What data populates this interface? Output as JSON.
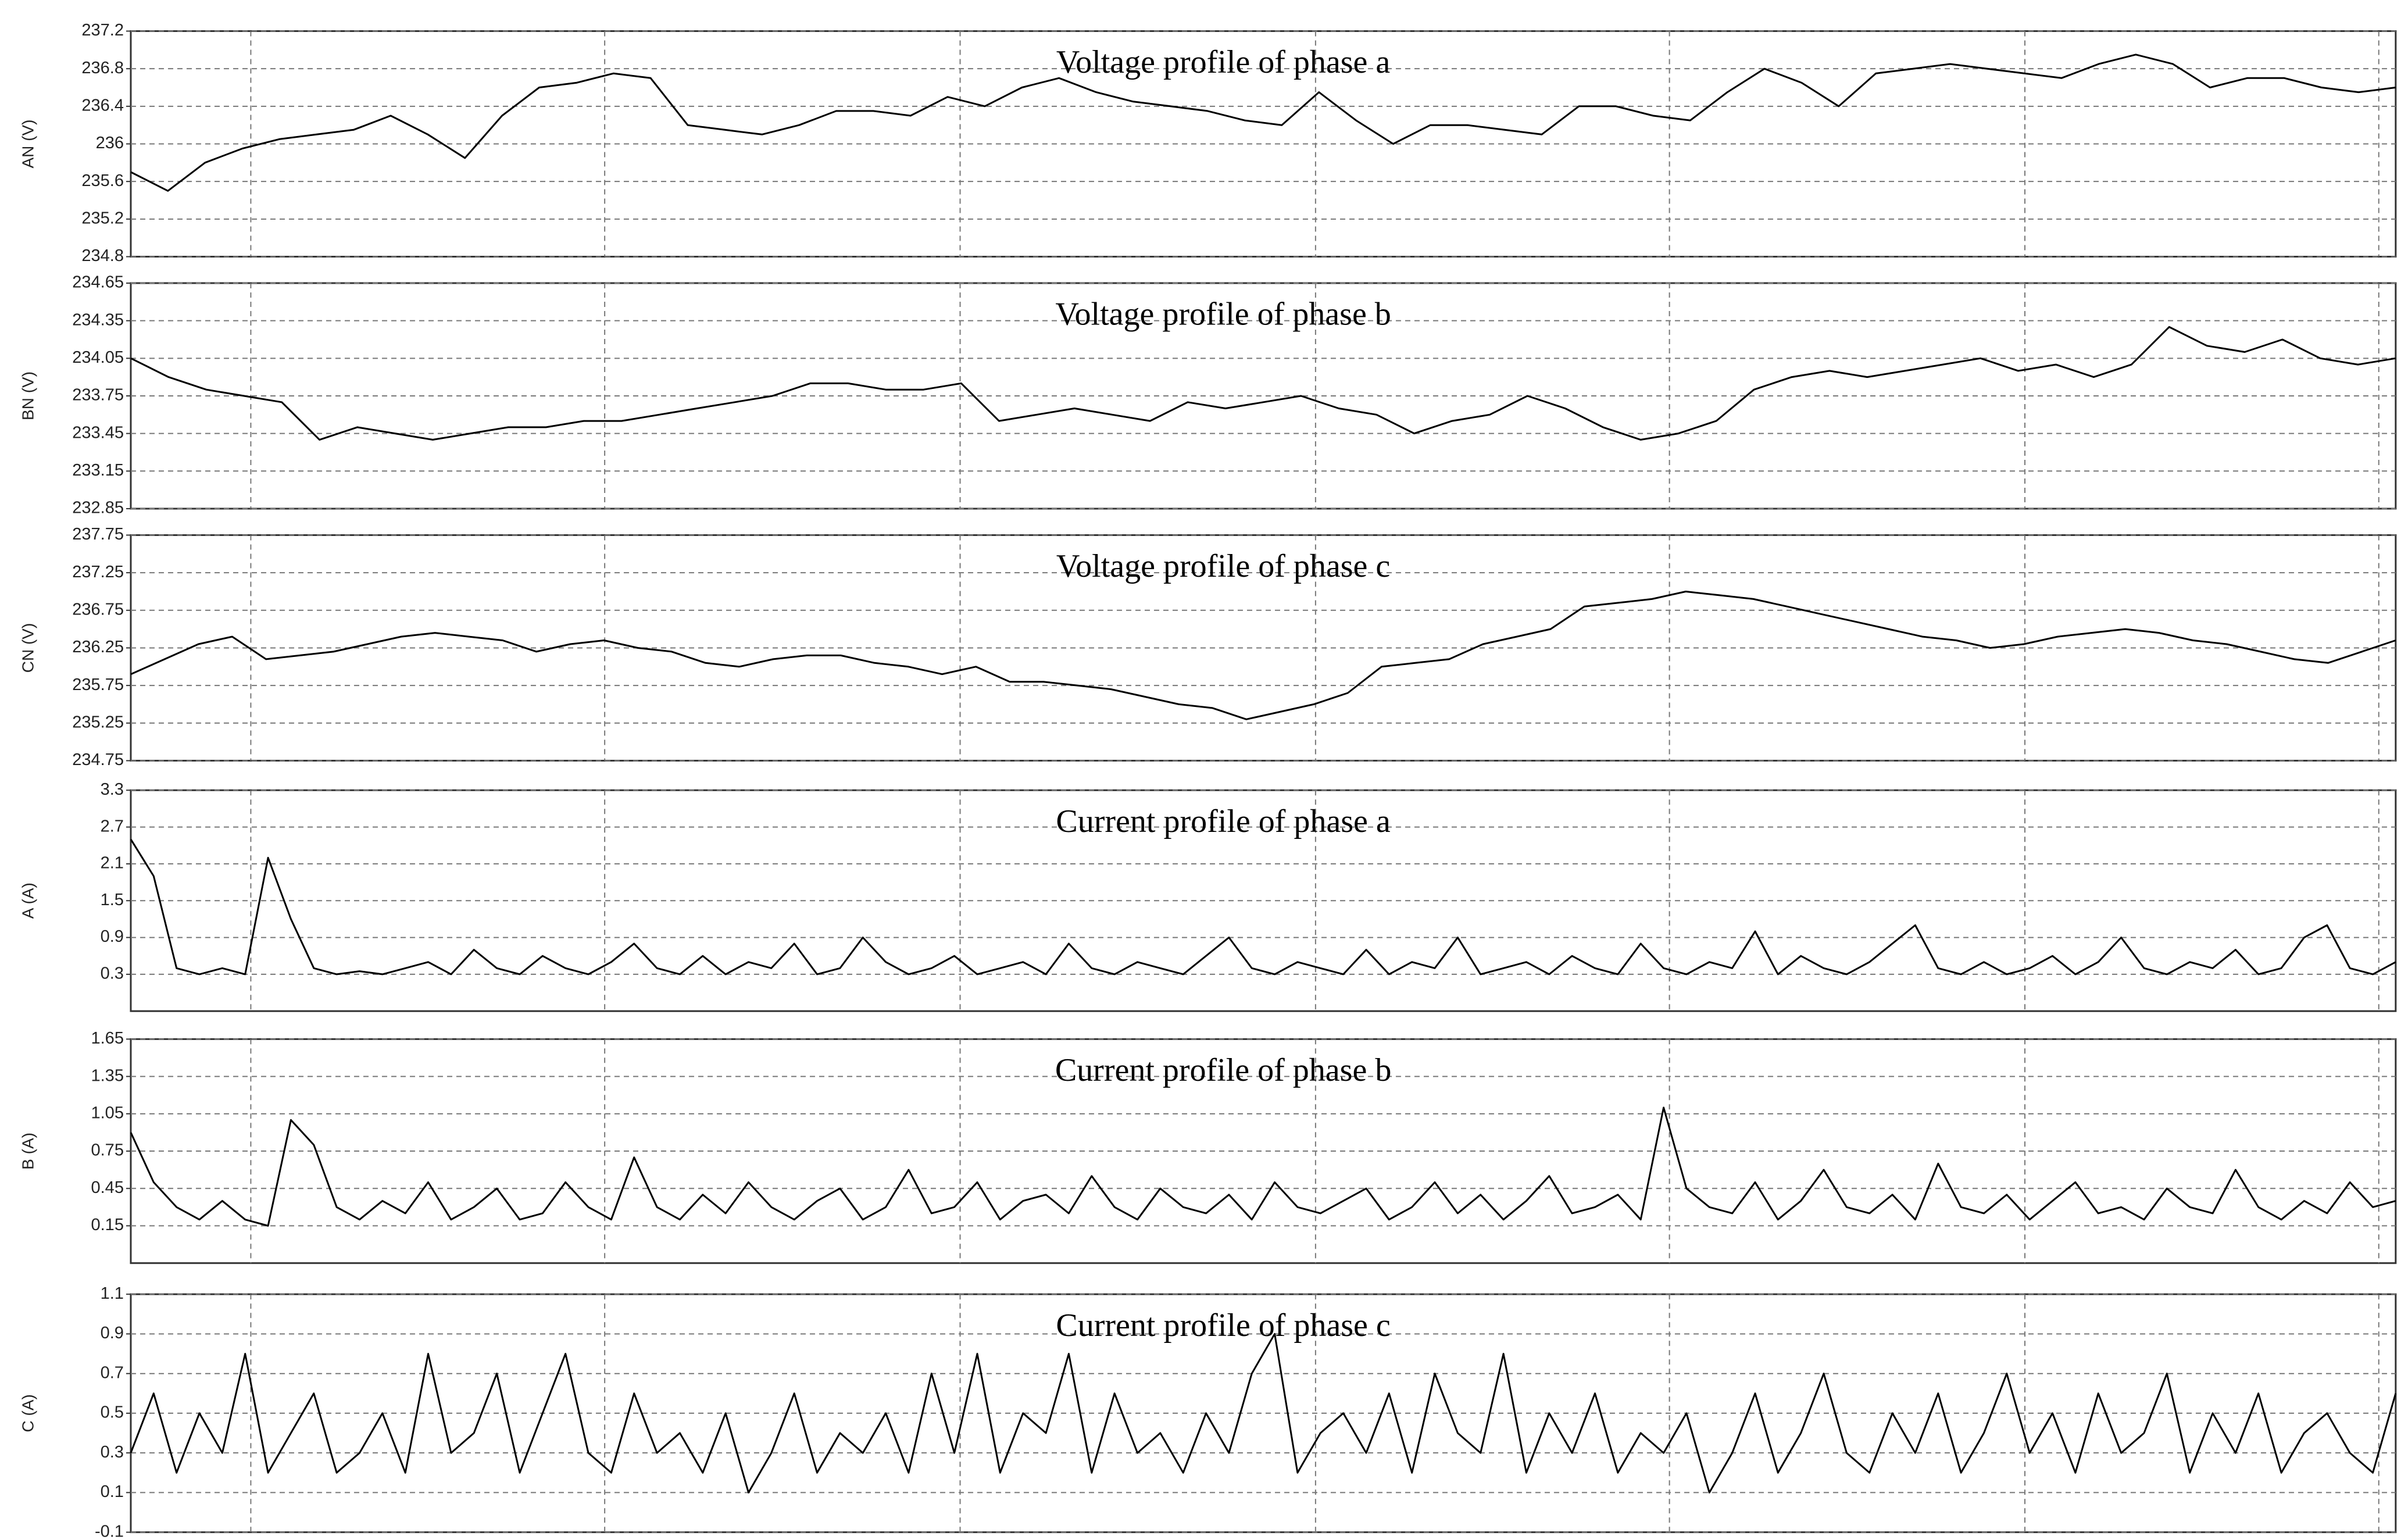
{
  "chart_data": [
    {
      "type": "line",
      "title": "Voltage profile of phase a",
      "y_label": "AN (V)",
      "color": "#000000",
      "grid": true,
      "ylim": [
        234.8,
        237.2
      ],
      "yticks": [
        234.8,
        235.2,
        235.6,
        236,
        236.4,
        236.8,
        237.2
      ],
      "values": [
        235.7,
        235.5,
        235.8,
        235.95,
        236.05,
        236.1,
        236.15,
        236.3,
        236.1,
        235.85,
        236.3,
        236.6,
        236.65,
        236.75,
        236.7,
        236.2,
        236.15,
        236.1,
        236.2,
        236.35,
        236.35,
        236.3,
        236.5,
        236.4,
        236.6,
        236.7,
        236.55,
        236.45,
        236.4,
        236.35,
        236.25,
        236.2,
        236.55,
        236.25,
        236,
        236.2,
        236.2,
        236.15,
        236.1,
        236.4,
        236.4,
        236.3,
        236.25,
        236.55,
        236.8,
        236.65,
        236.4,
        236.75,
        236.8,
        236.85,
        236.8,
        236.75,
        236.7,
        236.85,
        236.95,
        236.85,
        236.6,
        236.7,
        236.7,
        236.6,
        236.55,
        236.6
      ]
    },
    {
      "type": "line",
      "title": "Voltage profile of phase b",
      "y_label": "BN (V)",
      "color": "#000000",
      "grid": true,
      "ylim": [
        232.85,
        234.65
      ],
      "yticks": [
        232.85,
        233.15,
        233.45,
        233.75,
        234.05,
        234.35,
        234.65
      ],
      "values": [
        234.05,
        233.9,
        233.8,
        233.75,
        233.7,
        233.4,
        233.5,
        233.45,
        233.4,
        233.45,
        233.5,
        233.5,
        233.55,
        233.55,
        233.6,
        233.65,
        233.7,
        233.75,
        233.85,
        233.85,
        233.8,
        233.8,
        233.85,
        233.55,
        233.6,
        233.65,
        233.6,
        233.55,
        233.7,
        233.65,
        233.7,
        233.75,
        233.65,
        233.6,
        233.45,
        233.55,
        233.6,
        233.75,
        233.65,
        233.5,
        233.4,
        233.45,
        233.55,
        233.8,
        233.9,
        233.95,
        233.9,
        233.95,
        234,
        234.05,
        233.95,
        234,
        233.9,
        234,
        234.3,
        234.15,
        234.1,
        234.2,
        234.05,
        234,
        234.05
      ]
    },
    {
      "type": "line",
      "title": "Voltage profile of phase c",
      "y_label": "CN (V)",
      "color": "#000000",
      "grid": true,
      "ylim": [
        234.75,
        237.75
      ],
      "yticks": [
        234.75,
        235.25,
        235.75,
        236.25,
        236.75,
        237.25,
        237.75
      ],
      "values": [
        235.9,
        236.1,
        236.3,
        236.4,
        236.1,
        236.15,
        236.2,
        236.3,
        236.4,
        236.45,
        236.4,
        236.35,
        236.2,
        236.3,
        236.35,
        236.25,
        236.2,
        236.05,
        236,
        236.1,
        236.15,
        236.15,
        236.05,
        236,
        235.9,
        236,
        235.8,
        235.8,
        235.75,
        235.7,
        235.6,
        235.5,
        235.45,
        235.3,
        235.4,
        235.5,
        235.65,
        236,
        236.05,
        236.1,
        236.3,
        236.4,
        236.5,
        236.8,
        236.85,
        236.9,
        237,
        236.95,
        236.9,
        236.8,
        236.7,
        236.6,
        236.5,
        236.4,
        236.35,
        236.25,
        236.3,
        236.4,
        236.45,
        236.5,
        236.45,
        236.35,
        236.3,
        236.2,
        236.1,
        236.05,
        236.2,
        236.35
      ]
    },
    {
      "type": "line",
      "title": "Current profile of phase a",
      "y_label": "A (A)",
      "color": "#000000",
      "grid": true,
      "ylim": [
        -0.3,
        3.3
      ],
      "yticks": [
        0.3,
        0.9,
        1.5,
        2.1,
        2.7,
        3.3
      ],
      "values": [
        2.5,
        1.9,
        0.4,
        0.3,
        0.4,
        0.3,
        2.2,
        1.2,
        0.4,
        0.3,
        0.35,
        0.3,
        0.4,
        0.5,
        0.3,
        0.7,
        0.4,
        0.3,
        0.6,
        0.4,
        0.3,
        0.5,
        0.8,
        0.4,
        0.3,
        0.6,
        0.3,
        0.5,
        0.4,
        0.8,
        0.3,
        0.4,
        0.9,
        0.5,
        0.3,
        0.4,
        0.6,
        0.3,
        0.4,
        0.5,
        0.3,
        0.8,
        0.4,
        0.3,
        0.5,
        0.4,
        0.3,
        0.6,
        0.9,
        0.4,
        0.3,
        0.5,
        0.4,
        0.3,
        0.7,
        0.3,
        0.5,
        0.4,
        0.9,
        0.3,
        0.4,
        0.5,
        0.3,
        0.6,
        0.4,
        0.3,
        0.8,
        0.4,
        0.3,
        0.5,
        0.4,
        1.0,
        0.3,
        0.6,
        0.4,
        0.3,
        0.5,
        0.8,
        1.1,
        0.4,
        0.3,
        0.5,
        0.3,
        0.4,
        0.6,
        0.3,
        0.5,
        0.9,
        0.4,
        0.3,
        0.5,
        0.4,
        0.7,
        0.3,
        0.4,
        0.9,
        1.1,
        0.4,
        0.3,
        0.5
      ]
    },
    {
      "type": "line",
      "title": "Current profile of phase b",
      "y_label": "B (A)",
      "color": "#000000",
      "grid": true,
      "ylim": [
        -0.15,
        1.65
      ],
      "yticks": [
        0.15,
        0.45,
        0.75,
        1.05,
        1.35,
        1.65
      ],
      "values": [
        0.9,
        0.5,
        0.3,
        0.2,
        0.35,
        0.2,
        0.15,
        1.0,
        0.8,
        0.3,
        0.2,
        0.35,
        0.25,
        0.5,
        0.2,
        0.3,
        0.45,
        0.2,
        0.25,
        0.5,
        0.3,
        0.2,
        0.7,
        0.3,
        0.2,
        0.4,
        0.25,
        0.5,
        0.3,
        0.2,
        0.35,
        0.45,
        0.2,
        0.3,
        0.6,
        0.25,
        0.3,
        0.5,
        0.2,
        0.35,
        0.4,
        0.25,
        0.55,
        0.3,
        0.2,
        0.45,
        0.3,
        0.25,
        0.4,
        0.2,
        0.5,
        0.3,
        0.25,
        0.35,
        0.45,
        0.2,
        0.3,
        0.5,
        0.25,
        0.4,
        0.2,
        0.35,
        0.55,
        0.25,
        0.3,
        0.4,
        0.2,
        1.1,
        0.45,
        0.3,
        0.25,
        0.5,
        0.2,
        0.35,
        0.6,
        0.3,
        0.25,
        0.4,
        0.2,
        0.65,
        0.3,
        0.25,
        0.4,
        0.2,
        0.35,
        0.5,
        0.25,
        0.3,
        0.2,
        0.45,
        0.3,
        0.25,
        0.6,
        0.3,
        0.2,
        0.35,
        0.25,
        0.5,
        0.3,
        0.35
      ]
    },
    {
      "type": "line",
      "title": "Current profile of phase c",
      "y_label": "C (A)",
      "color": "#000000",
      "grid": true,
      "ylim": [
        -0.1,
        1.1
      ],
      "yticks": [
        -0.1,
        0.1,
        0.3,
        0.5,
        0.7,
        0.9,
        1.1
      ],
      "values": [
        0.3,
        0.6,
        0.2,
        0.5,
        0.3,
        0.8,
        0.2,
        0.4,
        0.6,
        0.2,
        0.3,
        0.5,
        0.2,
        0.8,
        0.3,
        0.4,
        0.7,
        0.2,
        0.5,
        0.8,
        0.3,
        0.2,
        0.6,
        0.3,
        0.4,
        0.2,
        0.5,
        0.1,
        0.3,
        0.6,
        0.2,
        0.4,
        0.3,
        0.5,
        0.2,
        0.7,
        0.3,
        0.8,
        0.2,
        0.5,
        0.4,
        0.8,
        0.2,
        0.6,
        0.3,
        0.4,
        0.2,
        0.5,
        0.3,
        0.7,
        0.9,
        0.2,
        0.4,
        0.5,
        0.3,
        0.6,
        0.2,
        0.7,
        0.4,
        0.3,
        0.8,
        0.2,
        0.5,
        0.3,
        0.6,
        0.2,
        0.4,
        0.3,
        0.5,
        0.1,
        0.3,
        0.6,
        0.2,
        0.4,
        0.7,
        0.3,
        0.2,
        0.5,
        0.3,
        0.6,
        0.2,
        0.4,
        0.7,
        0.3,
        0.5,
        0.2,
        0.6,
        0.3,
        0.4,
        0.7,
        0.2,
        0.5,
        0.3,
        0.6,
        0.2,
        0.4,
        0.5,
        0.3,
        0.2,
        0.6
      ]
    }
  ]
}
